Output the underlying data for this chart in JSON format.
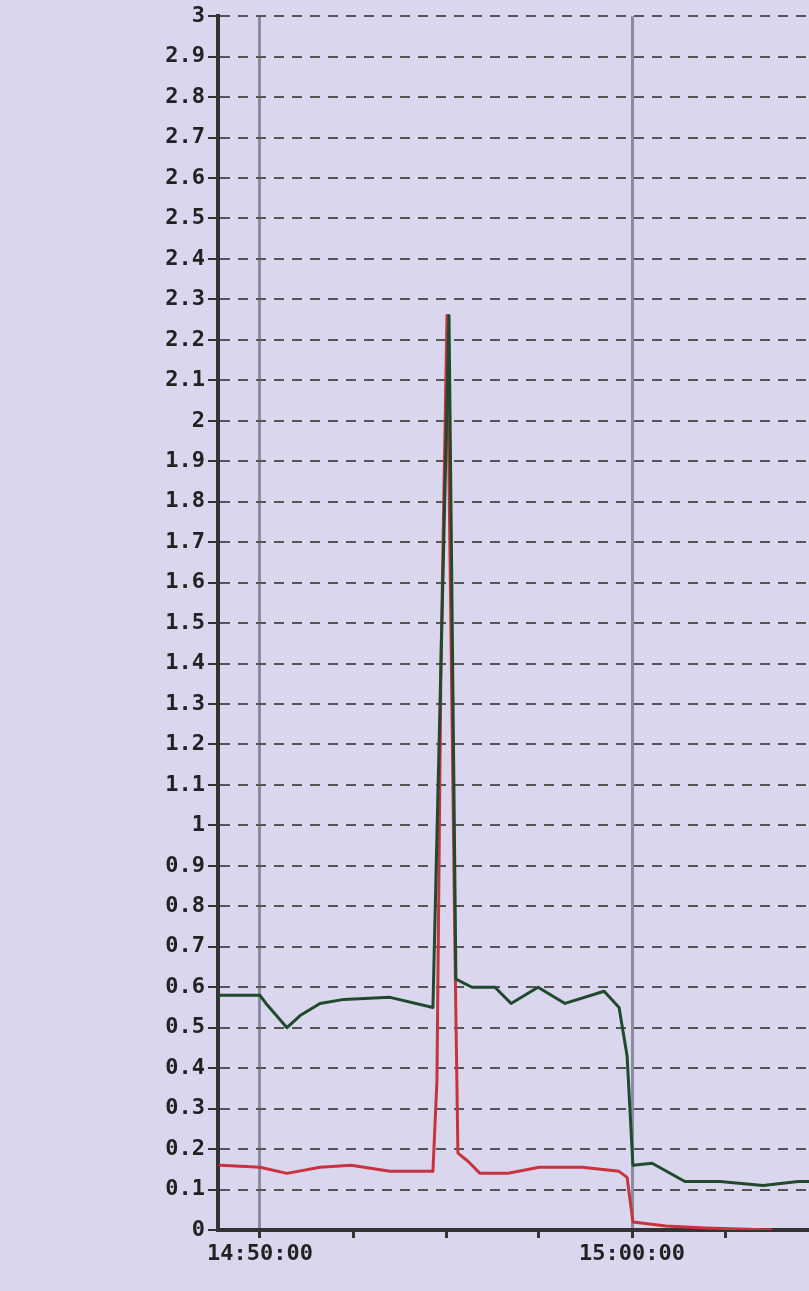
{
  "chart_data": {
    "type": "line",
    "xlim": [
      14.8145,
      15.0793
    ],
    "xticks": [
      {
        "value": 14.8333,
        "label": "14:50:00"
      },
      {
        "value": 14.875,
        "label": null
      },
      {
        "value": 14.9167,
        "label": null
      },
      {
        "value": 14.9583,
        "label": null
      },
      {
        "value": 15,
        "label": "15:00:00"
      },
      {
        "value": 15.0417,
        "label": null
      }
    ],
    "ylim": [
      0,
      3
    ],
    "yticks": [
      0,
      0.1,
      0.2,
      0.3,
      0.4,
      0.5,
      0.6,
      0.7,
      0.8,
      0.9,
      1,
      1.1,
      1.2,
      1.3,
      1.4,
      1.5,
      1.6,
      1.7,
      1.8,
      1.9,
      2,
      2.1,
      2.2,
      2.3,
      2.4,
      2.5,
      2.6,
      2.7,
      2.8,
      2.9,
      3
    ],
    "grid": true,
    "marker": "none",
    "line_style": "solid",
    "series": [
      {
        "color": "#1f4a2c",
        "x": [
          14.8154,
          14.8333,
          14.836,
          14.8454,
          14.8513,
          14.8602,
          14.871,
          14.8916,
          14.9108,
          14.9144,
          14.918,
          14.9211,
          14.9283,
          14.9386,
          14.9458,
          14.9579,
          14.97,
          14.9875,
          14.9942,
          14.9978,
          15.0004,
          15.009,
          15.0237,
          15.0394,
          15.0587,
          15.0744,
          15.0793
        ],
        "values": [
          0.58,
          0.58,
          0.56,
          0.5,
          0.53,
          0.56,
          0.57,
          0.575,
          0.55,
          1.4,
          2.26,
          0.62,
          0.6,
          0.6,
          0.56,
          0.6,
          0.56,
          0.59,
          0.55,
          0.43,
          0.16,
          0.165,
          0.12,
          0.12,
          0.11,
          0.12,
          0.12
        ]
      },
      {
        "color": "#c8343e",
        "x": [
          14.8154,
          14.8333,
          14.8454,
          14.8602,
          14.8741,
          14.8916,
          14.9108,
          14.9126,
          14.9144,
          14.9171,
          14.9207,
          14.922,
          14.9265,
          14.9319,
          14.9444,
          14.9584,
          14.9777,
          14.9942,
          14.9978,
          15.0004,
          15.0152,
          15.0331,
          15.0623
        ],
        "values": [
          0.16,
          0.155,
          0.14,
          0.155,
          0.16,
          0.145,
          0.145,
          0.37,
          1.4,
          2.26,
          0.68,
          0.19,
          0.17,
          0.14,
          0.14,
          0.155,
          0.155,
          0.145,
          0.13,
          0.02,
          0.01,
          0.005,
          0
        ]
      }
    ]
  }
}
